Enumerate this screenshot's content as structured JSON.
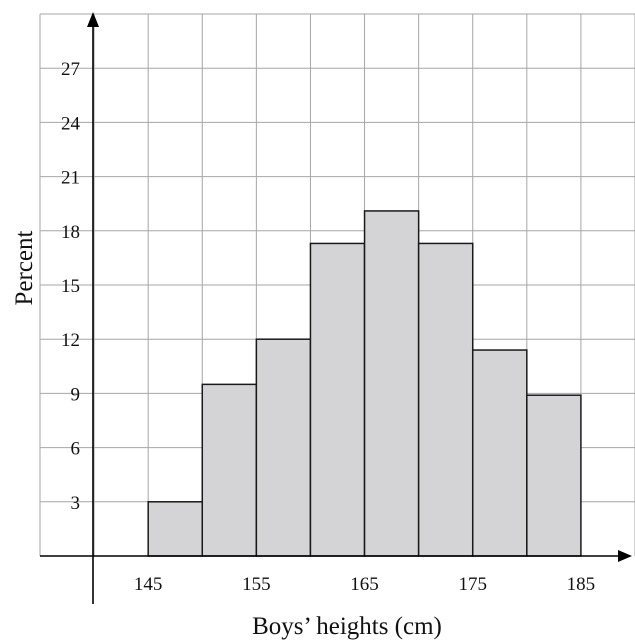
{
  "chart_data": {
    "type": "bar",
    "xlabel": "Boys’ heights (cm)",
    "ylabel": "Percent",
    "x_tick_labels": [
      "145",
      "155",
      "165",
      "175",
      "185"
    ],
    "x_ticks": [
      145,
      155,
      165,
      175,
      185
    ],
    "y_tick_labels": [
      "3",
      "6",
      "9",
      "12",
      "15",
      "18",
      "21",
      "24",
      "27"
    ],
    "y_ticks": [
      3,
      6,
      9,
      12,
      15,
      18,
      21,
      24,
      27
    ],
    "xlim": [
      135,
      190
    ],
    "ylim": [
      0,
      30
    ],
    "grid": true,
    "bin_width": 5,
    "bins": [
      {
        "x_start": 145,
        "x_end": 150,
        "value": 3
      },
      {
        "x_start": 150,
        "x_end": 155,
        "value": 9.5
      },
      {
        "x_start": 155,
        "x_end": 160,
        "value": 12
      },
      {
        "x_start": 160,
        "x_end": 165,
        "value": 17.3
      },
      {
        "x_start": 165,
        "x_end": 170,
        "value": 19.1
      },
      {
        "x_start": 170,
        "x_end": 175,
        "value": 17.3
      },
      {
        "x_start": 175,
        "x_end": 180,
        "value": 11.4
      },
      {
        "x_start": 180,
        "x_end": 185,
        "value": 8.9
      }
    ],
    "colors": {
      "bar_fill": "#d4d4d6",
      "bar_stroke": "#1a1a1a",
      "grid": "#a6a6a6",
      "axis": "#000000"
    }
  }
}
